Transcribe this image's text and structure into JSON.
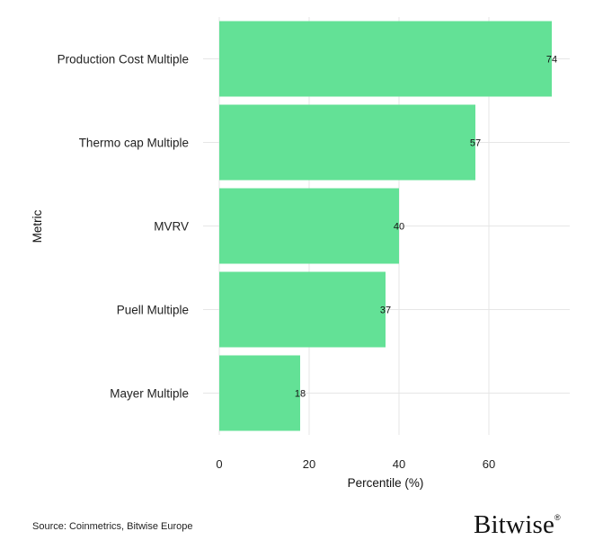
{
  "chart_data": {
    "type": "bar",
    "orientation": "horizontal",
    "categories": [
      "Production Cost Multiple",
      "Thermo cap Multiple",
      "MVRV",
      "Puell Multiple",
      "Mayer Multiple"
    ],
    "values": [
      74,
      57,
      40,
      37,
      18
    ],
    "data_labels": [
      "74",
      "57",
      "40",
      "37",
      "18"
    ],
    "xlabel": "Percentile (%)",
    "ylabel": "Metric",
    "xlim": [
      0,
      78
    ],
    "xticks": [
      0,
      20,
      40,
      60
    ],
    "xtick_labels": [
      "0",
      "20",
      "40",
      "60"
    ],
    "grid": true,
    "bar_color": "#63e196"
  },
  "footer": {
    "source": "Source: Coinmetrics, Bitwise Europe",
    "brand": "Bitwise",
    "brand_mark": "®"
  }
}
